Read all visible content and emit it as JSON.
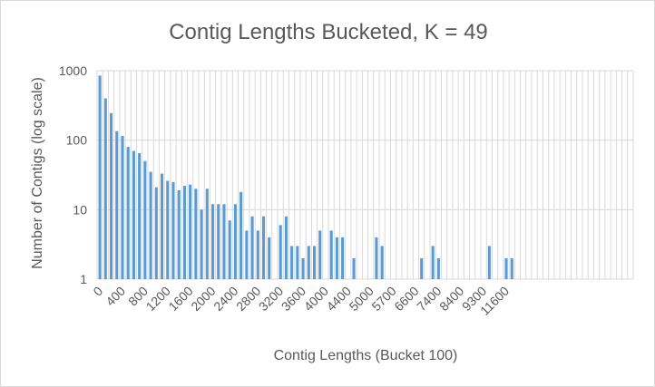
{
  "chart_data": {
    "type": "bar",
    "title": "Contig Lengths Bucketed, K = 49",
    "xlabel": "Contig Lengths (Bucket 100)",
    "ylabel": "Number of Contigs (log scale)",
    "y_scale": "log",
    "ylim": [
      1,
      1000
    ],
    "y_ticks": [
      "1",
      "10",
      "100",
      "1000"
    ],
    "y_tick_values": [
      1,
      10,
      100,
      1000
    ],
    "x_tick_labels": [
      "0",
      "400",
      "800",
      "1200",
      "1600",
      "2000",
      "2400",
      "2800",
      "3200",
      "3600",
      "4000",
      "4400",
      "5000",
      "5700",
      "6600",
      "7400",
      "8400",
      "9300",
      "11600"
    ],
    "x_tick_every": 4,
    "grid": true,
    "legend": "none",
    "bar_color": "#5b9bd5",
    "categories": [
      "0",
      "100",
      "200",
      "300",
      "400",
      "500",
      "600",
      "700",
      "800",
      "900",
      "1000",
      "1100",
      "1200",
      "1300",
      "1400",
      "1500",
      "1600",
      "1700",
      "1800",
      "1900",
      "2000",
      "2100",
      "2200",
      "2300",
      "2400",
      "2500",
      "2600",
      "2700",
      "2800",
      "2900",
      "3000",
      "3100",
      "3200",
      "3300",
      "3400",
      "3500",
      "3600",
      "3700",
      "3800",
      "3900",
      "4000",
      "4100",
      "4200",
      "4300",
      "4400",
      "4500",
      "4600",
      "4800",
      "4900",
      "5000",
      "5100",
      "5300",
      "5400",
      "5500",
      "5600",
      "5700",
      "5800",
      "5900",
      "6000",
      "6100",
      "6200",
      "6300",
      "6400",
      "6600",
      "6800",
      "6900",
      "7000",
      "7100",
      "7200",
      "7400",
      "7500",
      "7600",
      "7700",
      "8100",
      "8200",
      "8300",
      "8400",
      "8500",
      "8600",
      "8800",
      "9000",
      "9100",
      "9300",
      "9400",
      "9700",
      "9800",
      "9900",
      "10400",
      "11100",
      "11300",
      "11600",
      "11900",
      "12000",
      "13100",
      "15000"
    ],
    "values": [
      850,
      400,
      245,
      135,
      115,
      80,
      70,
      65,
      50,
      35,
      21,
      33,
      26,
      25,
      19,
      22,
      23,
      20,
      10,
      20,
      12,
      12,
      12,
      7,
      12,
      18,
      5,
      8,
      5,
      8,
      4,
      null,
      6,
      8,
      3,
      3,
      2,
      3,
      3,
      5,
      null,
      5,
      4,
      4,
      null,
      2,
      null,
      null,
      null,
      4,
      3,
      null,
      null,
      null,
      null,
      null,
      null,
      2,
      null,
      3,
      2,
      null,
      null,
      null,
      null,
      null,
      null,
      null,
      null,
      3,
      null,
      null,
      2,
      2,
      null,
      null,
      null,
      null,
      null,
      null,
      null,
      null,
      null,
      null,
      null,
      null,
      null,
      null,
      null,
      null,
      null,
      null,
      null,
      null,
      null
    ]
  }
}
